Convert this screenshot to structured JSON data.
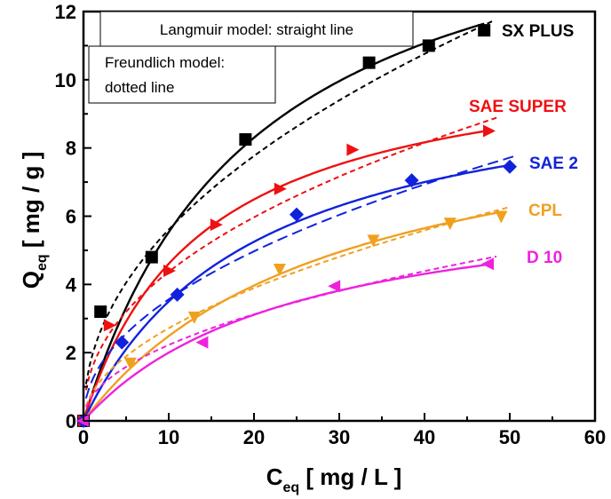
{
  "chart_data": {
    "type": "scatter",
    "xlabel": {
      "main": "C",
      "sub": "eq",
      "rest": " [ mg / L ]"
    },
    "ylabel": {
      "main": "Q",
      "sub": "eq",
      "rest": " [ mg / g ]"
    },
    "xlim": [
      0,
      60
    ],
    "ylim": [
      0,
      12
    ],
    "xticks": [
      "0",
      "10",
      "20",
      "30",
      "40",
      "50",
      "60"
    ],
    "yticks": [
      "0",
      "2",
      "4",
      "6",
      "8",
      "10",
      "12"
    ],
    "grid": false,
    "notes": {
      "langmuir": "Langmuir model: straight line",
      "freundlich_line1": "Freundlich model:",
      "freundlich_line2": "dotted line"
    },
    "series": [
      {
        "name": "SX PLUS",
        "color": "#000000",
        "marker": "square",
        "x": [
          0,
          2,
          8,
          19,
          33.5,
          40.5,
          47
        ],
        "y": [
          0,
          3.2,
          4.8,
          8.25,
          10.5,
          11.0,
          11.45
        ],
        "langmuir": {
          "qmax": 16.6,
          "kl": 0.05
        },
        "freundlich": {
          "kf": 1.9,
          "n": 0.47
        },
        "freundlich_dash": "6,4"
      },
      {
        "name": "SAE SUPER",
        "color": "#ee1111",
        "marker": "triangle-right",
        "x": [
          0,
          3,
          10,
          15.5,
          23,
          31.5,
          47.5
        ],
        "y": [
          0,
          2.8,
          4.4,
          5.75,
          6.8,
          7.95,
          8.5
        ],
        "langmuir": {
          "qmax": 11.0,
          "kl": 0.072
        },
        "freundlich": {
          "kf": 1.55,
          "n": 0.45
        },
        "freundlich_dash": "6,4"
      },
      {
        "name": "SAE 2",
        "color": "#1122dd",
        "marker": "diamond",
        "x": [
          0,
          4.5,
          11,
          25,
          38.5,
          50
        ],
        "y": [
          0,
          2.3,
          3.7,
          6.05,
          7.05,
          7.45
        ],
        "langmuir": {
          "qmax": 10.5,
          "kl": 0.05
        },
        "freundlich": {
          "kf": 1.18,
          "n": 0.48
        },
        "freundlich_dash": "12,6"
      },
      {
        "name": "CPL",
        "color": "#f0a020",
        "marker": "triangle-down",
        "x": [
          5.5,
          13,
          23,
          34,
          43,
          49
        ],
        "y": [
          1.7,
          3.05,
          4.45,
          5.3,
          5.8,
          6.0
        ],
        "langmuir": {
          "qmax": 9.8,
          "kl": 0.034
        },
        "freundlich": {
          "kf": 0.82,
          "n": 0.52
        },
        "freundlich_dash": "6,4"
      },
      {
        "name": "D 10",
        "color": "#ee22dd",
        "marker": "triangle-left",
        "x": [
          0,
          14,
          29.5,
          47.5
        ],
        "y": [
          0,
          2.3,
          3.95,
          4.6
        ],
        "langmuir": {
          "qmax": 7.0,
          "kl": 0.04
        },
        "freundlich": {
          "kf": 0.72,
          "n": 0.49
        },
        "freundlich_dash": "6,4"
      }
    ]
  }
}
